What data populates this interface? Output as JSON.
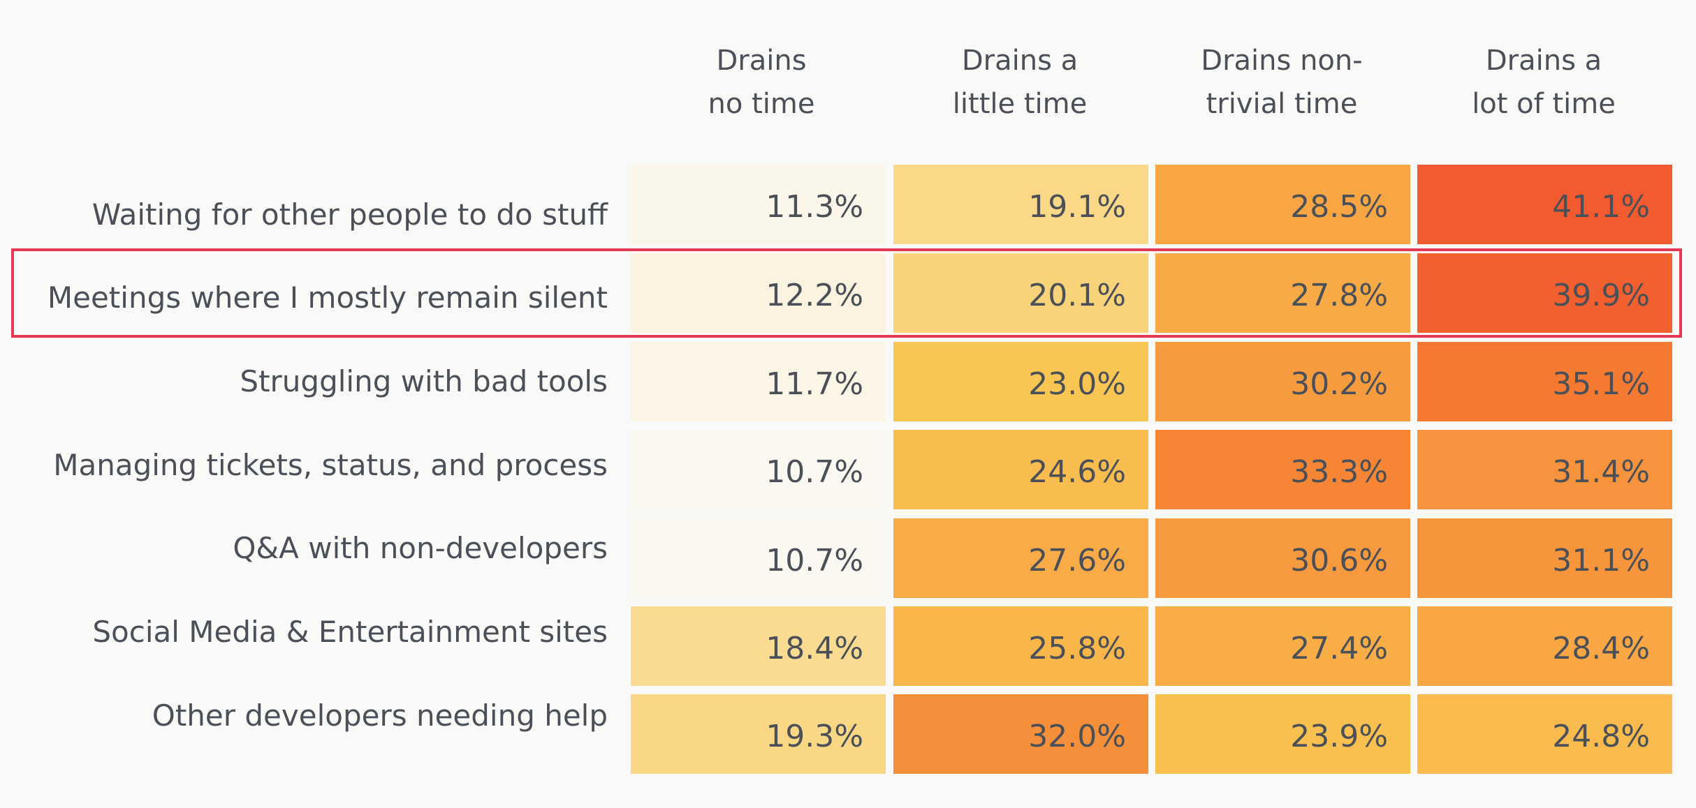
{
  "chart_data": {
    "type": "heatmap",
    "columns": [
      [
        "Drains",
        "no time"
      ],
      [
        "Drains a",
        "little time"
      ],
      [
        "Drains non-",
        "trivial time"
      ],
      [
        "Drains a",
        "lot of time"
      ]
    ],
    "rows": [
      "Waiting for other people to do stuff",
      "Meetings where I mostly remain silent",
      "Struggling with bad tools",
      "Managing tickets, status, and process",
      "Q&A with non-developers",
      "Social Media & Entertainment sites",
      "Other developers needing help"
    ],
    "values": [
      [
        11.3,
        19.1,
        28.5,
        41.1
      ],
      [
        12.2,
        20.1,
        27.8,
        39.9
      ],
      [
        11.7,
        23.0,
        30.2,
        35.1
      ],
      [
        10.7,
        24.6,
        33.3,
        31.4
      ],
      [
        10.7,
        27.6,
        30.6,
        31.1
      ],
      [
        18.4,
        25.8,
        27.4,
        28.4
      ],
      [
        19.3,
        32.0,
        23.9,
        24.8
      ]
    ],
    "value_format": "percent_1dp",
    "highlighted_row": "Meetings where I mostly remain silent",
    "highlight_color": "#e8384f",
    "color_scale": [
      "#fbf8f1",
      "#fae3a8",
      "#f9c653",
      "#f8a443",
      "#f57a31",
      "#f25a2f"
    ],
    "text_color": "#4b5058",
    "background": "#f9f9f8"
  }
}
